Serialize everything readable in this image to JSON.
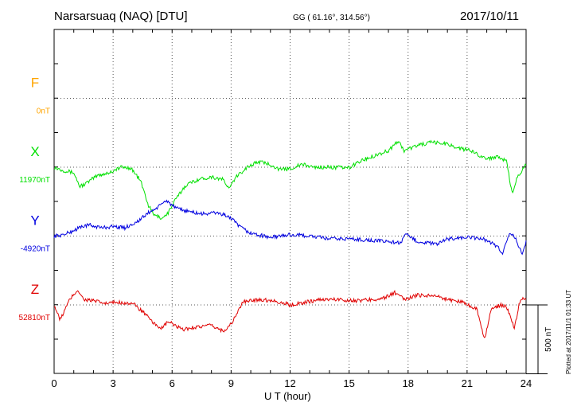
{
  "header": {
    "station": "Narsarsuaq (NAQ)  [DTU]",
    "coords": "GG ( 61.16°, 314.56°)",
    "date": "2017/10/11"
  },
  "footer": {
    "plotted": "Plotted at 2017/11/1 01:33 UT"
  },
  "chart_data": {
    "type": "line",
    "title": "Narsarsuaq (NAQ)  [DTU]",
    "xlabel": "U T (hour)",
    "xlim": [
      0,
      24
    ],
    "xticks": [
      0,
      3,
      6,
      9,
      12,
      15,
      18,
      21,
      24
    ],
    "grid": true,
    "scale_bar": {
      "label": "500 nT",
      "value": 500
    },
    "components": [
      {
        "name": "F",
        "baseline_label": "0nT",
        "color": "#ffa500",
        "has_data": false
      },
      {
        "name": "X",
        "baseline_label": "11970nT",
        "color": "#00e000",
        "has_data": true,
        "offset_nT": [
          [
            0,
            0
          ],
          [
            0.4,
            -20
          ],
          [
            1.0,
            -40
          ],
          [
            1.3,
            -140
          ],
          [
            1.6,
            -120
          ],
          [
            2.2,
            -60
          ],
          [
            2.8,
            -40
          ],
          [
            3.4,
            0
          ],
          [
            3.9,
            -5
          ],
          [
            4.4,
            -100
          ],
          [
            4.8,
            -280
          ],
          [
            5.1,
            -350
          ],
          [
            5.5,
            -370
          ],
          [
            5.8,
            -330
          ],
          [
            6.2,
            -230
          ],
          [
            6.7,
            -130
          ],
          [
            7.3,
            -90
          ],
          [
            8.0,
            -70
          ],
          [
            8.6,
            -90
          ],
          [
            8.9,
            -160
          ],
          [
            9.2,
            -80
          ],
          [
            9.8,
            0
          ],
          [
            10.4,
            40
          ],
          [
            11.0,
            20
          ],
          [
            11.5,
            -20
          ],
          [
            12.0,
            -10
          ],
          [
            12.6,
            20
          ],
          [
            13.2,
            0
          ],
          [
            14.0,
            0
          ],
          [
            15.0,
            -5
          ],
          [
            15.5,
            40
          ],
          [
            16.2,
            80
          ],
          [
            17.0,
            120
          ],
          [
            17.5,
            190
          ],
          [
            17.8,
            120
          ],
          [
            18.5,
            160
          ],
          [
            19.2,
            180
          ],
          [
            20.0,
            170
          ],
          [
            20.5,
            140
          ],
          [
            21.2,
            120
          ],
          [
            22.0,
            60
          ],
          [
            22.6,
            80
          ],
          [
            23.0,
            40
          ],
          [
            23.3,
            -200
          ],
          [
            23.5,
            -90
          ],
          [
            24,
            20
          ]
        ]
      },
      {
        "name": "Y",
        "baseline_label": "-4920nT",
        "color": "#0000e0",
        "has_data": true,
        "offset_nT": [
          [
            0,
            0
          ],
          [
            0.5,
            10
          ],
          [
            1.0,
            40
          ],
          [
            1.4,
            70
          ],
          [
            1.8,
            80
          ],
          [
            2.4,
            60
          ],
          [
            3.0,
            70
          ],
          [
            3.6,
            60
          ],
          [
            4.3,
            110
          ],
          [
            4.8,
            170
          ],
          [
            5.3,
            210
          ],
          [
            5.7,
            260
          ],
          [
            6.2,
            200
          ],
          [
            6.8,
            180
          ],
          [
            7.5,
            160
          ],
          [
            8.3,
            170
          ],
          [
            8.9,
            140
          ],
          [
            9.5,
            60
          ],
          [
            10.0,
            20
          ],
          [
            11.0,
            -10
          ],
          [
            12.0,
            10
          ],
          [
            13.0,
            0
          ],
          [
            14.0,
            -20
          ],
          [
            15.0,
            -20
          ],
          [
            16.0,
            -30
          ],
          [
            17.0,
            -40
          ],
          [
            17.6,
            -50
          ],
          [
            17.9,
            10
          ],
          [
            18.5,
            -40
          ],
          [
            19.5,
            -60
          ],
          [
            20.0,
            -20
          ],
          [
            21.0,
            -10
          ],
          [
            21.8,
            -20
          ],
          [
            22.4,
            -60
          ],
          [
            22.8,
            -120
          ],
          [
            23.2,
            30
          ],
          [
            23.5,
            -30
          ],
          [
            23.8,
            -130
          ],
          [
            24,
            -40
          ]
        ]
      },
      {
        "name": "Z",
        "baseline_label": "52810nT",
        "color": "#e00000",
        "has_data": true,
        "offset_nT": [
          [
            0,
            0
          ],
          [
            0.3,
            -110
          ],
          [
            0.8,
            40
          ],
          [
            1.2,
            110
          ],
          [
            1.5,
            40
          ],
          [
            2.0,
            30
          ],
          [
            2.6,
            10
          ],
          [
            3.2,
            20
          ],
          [
            4.0,
            10
          ],
          [
            4.6,
            -60
          ],
          [
            5.0,
            -130
          ],
          [
            5.5,
            -170
          ],
          [
            5.8,
            -120
          ],
          [
            6.5,
            -180
          ],
          [
            7.2,
            -160
          ],
          [
            8.0,
            -150
          ],
          [
            8.6,
            -190
          ],
          [
            9.0,
            -140
          ],
          [
            9.6,
            20
          ],
          [
            10.4,
            40
          ],
          [
            11.2,
            30
          ],
          [
            12.0,
            0
          ],
          [
            12.8,
            20
          ],
          [
            13.6,
            40
          ],
          [
            14.5,
            40
          ],
          [
            15.4,
            30
          ],
          [
            16.2,
            40
          ],
          [
            16.8,
            50
          ],
          [
            17.3,
            90
          ],
          [
            17.8,
            40
          ],
          [
            18.5,
            70
          ],
          [
            19.3,
            70
          ],
          [
            20.0,
            40
          ],
          [
            20.8,
            20
          ],
          [
            21.5,
            -30
          ],
          [
            21.9,
            -250
          ],
          [
            22.2,
            -40
          ],
          [
            22.7,
            0
          ],
          [
            23.0,
            -10
          ],
          [
            23.4,
            -170
          ],
          [
            23.7,
            40
          ],
          [
            24,
            50
          ]
        ]
      }
    ]
  }
}
